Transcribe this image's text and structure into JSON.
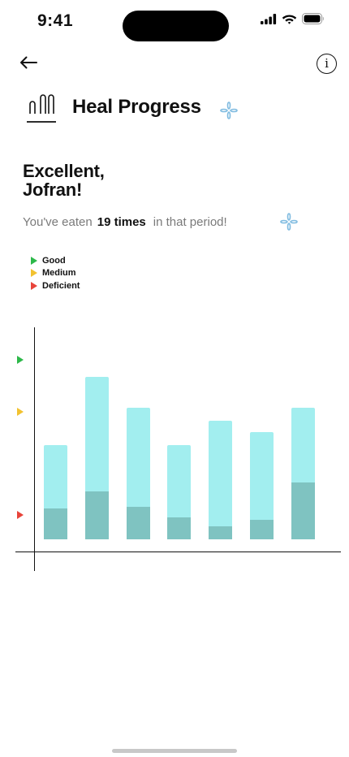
{
  "status_bar": {
    "time": "9:41"
  },
  "header": {
    "title": "Heal Progress"
  },
  "greeting": {
    "line1": "Excellent,",
    "line2": "Jofran!"
  },
  "summary": {
    "prefix": "You've eaten",
    "count": "19 times",
    "suffix": "in that period!"
  },
  "legend": [
    {
      "label": "Good",
      "color": "#2db84a"
    },
    {
      "label": "Medium",
      "color": "#f2c230"
    },
    {
      "label": "Deficient",
      "color": "#e8443a"
    }
  ],
  "chart_data": {
    "type": "bar",
    "title": "",
    "xlabel": "",
    "ylabel": "",
    "ylim": [
      0,
      10
    ],
    "reference_levels": [
      {
        "label": "Good",
        "value": 8.2,
        "color": "#2db84a"
      },
      {
        "label": "Medium",
        "value": 5.8,
        "color": "#f2c230"
      },
      {
        "label": "Deficient",
        "value": 1.1,
        "color": "#e8443a"
      }
    ],
    "series": [
      {
        "values": [
          4.3,
          7.4,
          6.0,
          4.3,
          5.4,
          4.9,
          6.0
        ],
        "color": "#a2eeef"
      },
      {
        "values": [
          1.4,
          2.2,
          1.5,
          1.0,
          0.6,
          0.9,
          2.6
        ],
        "color": "#7fc3c1"
      }
    ]
  }
}
